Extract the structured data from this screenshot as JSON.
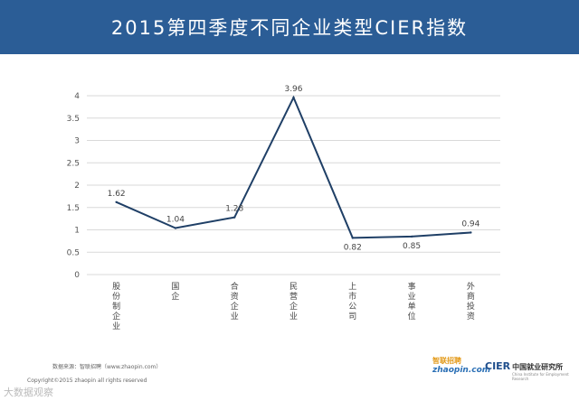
{
  "header": {
    "title": "2015第四季度不同企业类型CIER指数"
  },
  "chart_data": {
    "type": "line",
    "categories": [
      "股份制企业",
      "国企",
      "合资企业",
      "民营企业",
      "上市公司",
      "事业单位",
      "外商投资"
    ],
    "values": [
      1.62,
      1.04,
      1.28,
      3.96,
      0.82,
      0.85,
      0.94
    ],
    "value_labels": [
      "1.62",
      "1.04",
      "1.28",
      "3.96",
      "0.82",
      "0.85",
      "0.94"
    ],
    "ylim": [
      0,
      4
    ],
    "yticks": [
      0,
      0.5,
      1,
      1.5,
      2,
      2.5,
      3,
      3.5,
      4
    ],
    "ytick_labels": [
      "0",
      "0.5",
      "1",
      "1.5",
      "2",
      "2.5",
      "3",
      "3.5",
      "4"
    ],
    "grid": true,
    "line_color": "#1f3f66",
    "grid_color": "#d9d9d9"
  },
  "footer": {
    "source": "数据来源：智联招聘（www.zhaopin.com）",
    "copyright": "Copyright©2015 zhaopin all rights reserved",
    "watermark": "大数据观察",
    "logo_zhaopin_text": "zhaopin.com",
    "logo_zhaopin_tag": "智联招聘",
    "logo_cier": "CIER",
    "logo_cier_cn": "中国就业研究所",
    "logo_cier_en": "China Institute for Employment Research"
  },
  "colors": {
    "header_bg": "#2b5d96",
    "header_text": "#ffffff"
  }
}
